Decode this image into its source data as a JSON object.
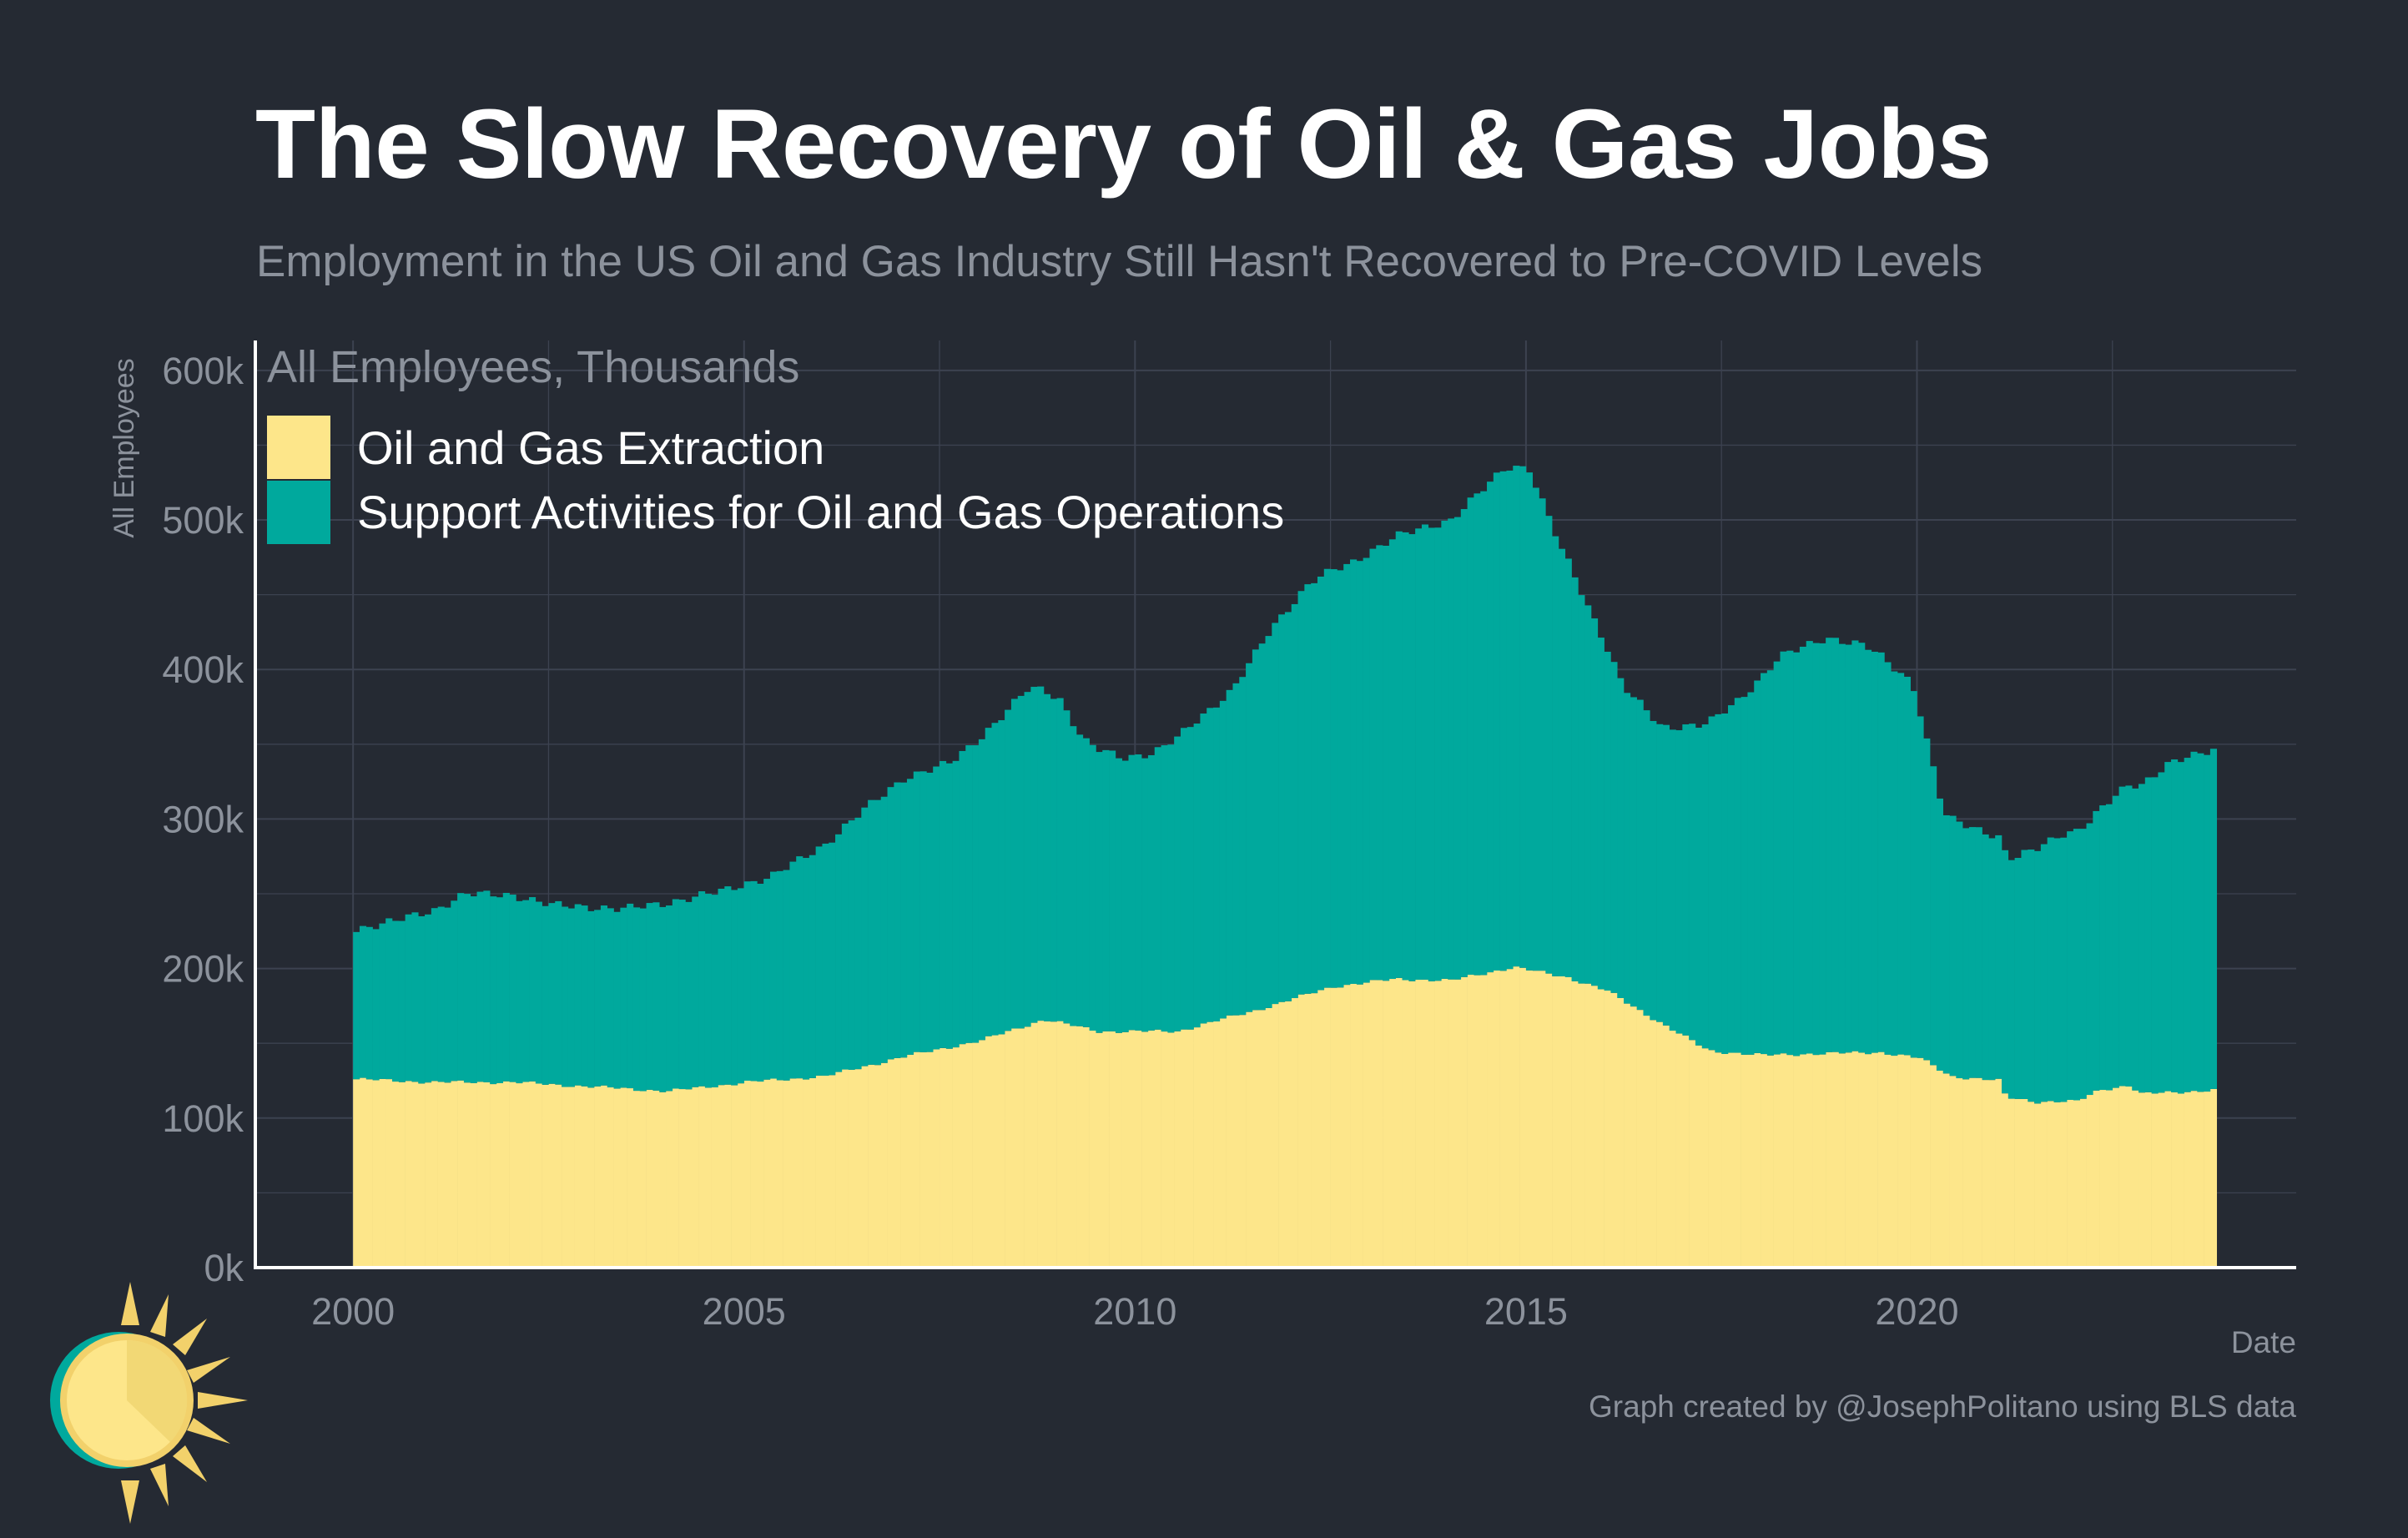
{
  "header": {
    "title": "The Slow Recovery of Oil & Gas Jobs",
    "subtitle": "Employment in the US Oil and Gas Industry Still Hasn't Recovered to Pre-COVID Levels"
  },
  "caption": "Graph created by @JosephPolitano using BLS data",
  "chart_data": {
    "type": "bar",
    "stacked": true,
    "legend_title": "All Employees, Thousands",
    "ylabel": "All Employees",
    "xlabel": "Date",
    "ylim": [
      0,
      620
    ],
    "yticks": [
      0,
      100,
      200,
      300,
      400,
      500,
      600
    ],
    "ytick_labels": [
      "0k",
      "100k",
      "200k",
      "300k",
      "400k",
      "500k",
      "600k"
    ],
    "xlim": [
      1998.75,
      2024.85
    ],
    "xticks": [
      2000,
      2005,
      2010,
      2015,
      2020
    ],
    "xtick_labels": [
      "2000",
      "2005",
      "2010",
      "2015",
      "2020"
    ],
    "grid": true,
    "legend_position": "top-left",
    "colors": {
      "extraction": "#fde68a",
      "support": "#00a99d",
      "background": "#252a33",
      "grid": "#3c4250",
      "axis": "#ffffff",
      "muted_text": "#8c929c"
    },
    "series": [
      {
        "name": "Oil and Gas Extraction",
        "key": "extraction",
        "anchors": [
          [
            2000.0,
            126
          ],
          [
            2001.0,
            124
          ],
          [
            2002.0,
            124
          ],
          [
            2003.0,
            121
          ],
          [
            2004.0,
            118
          ],
          [
            2005.0,
            124
          ],
          [
            2006.0,
            128
          ],
          [
            2007.0,
            141
          ],
          [
            2008.0,
            152
          ],
          [
            2008.8,
            166
          ],
          [
            2009.5,
            158
          ],
          [
            2010.5,
            158
          ],
          [
            2011.5,
            172
          ],
          [
            2012.5,
            188
          ],
          [
            2013.3,
            193
          ],
          [
            2014.0,
            192
          ],
          [
            2014.8,
            201
          ],
          [
            2015.5,
            194
          ],
          [
            2016.0,
            185
          ],
          [
            2016.8,
            160
          ],
          [
            2017.3,
            145
          ],
          [
            2018.0,
            142
          ],
          [
            2018.6,
            143
          ],
          [
            2019.5,
            144
          ],
          [
            2020.0,
            140
          ],
          [
            2020.4,
            128
          ],
          [
            2021.0,
            125
          ],
          [
            2021.1,
            114
          ],
          [
            2021.5,
            111
          ],
          [
            2022.0,
            111
          ],
          [
            2022.3,
            119
          ],
          [
            2022.7,
            122
          ],
          [
            2022.8,
            116
          ],
          [
            2023.5,
            118
          ],
          [
            2023.8,
            119
          ]
        ]
      },
      {
        "name": "Support Activities for Oil and Gas Operations",
        "key": "support",
        "anchors": [
          [
            2000.0,
            100
          ],
          [
            2000.5,
            107
          ],
          [
            2001.0,
            115
          ],
          [
            2001.4,
            126
          ],
          [
            2002.0,
            125
          ],
          [
            2002.5,
            120
          ],
          [
            2003.0,
            120
          ],
          [
            2003.4,
            120
          ],
          [
            2004.0,
            126
          ],
          [
            2004.7,
            130
          ],
          [
            2005.3,
            136
          ],
          [
            2006.0,
            155
          ],
          [
            2006.5,
            172
          ],
          [
            2007.0,
            186
          ],
          [
            2007.6,
            190
          ],
          [
            2008.2,
            210
          ],
          [
            2008.6,
            225
          ],
          [
            2009.0,
            216
          ],
          [
            2009.3,
            192
          ],
          [
            2009.8,
            183
          ],
          [
            2010.2,
            186
          ],
          [
            2010.7,
            203
          ],
          [
            2011.2,
            218
          ],
          [
            2011.7,
            252
          ],
          [
            2012.2,
            275
          ],
          [
            2012.7,
            281
          ],
          [
            2013.3,
            296
          ],
          [
            2014.0,
            308
          ],
          [
            2014.7,
            335
          ],
          [
            2015.0,
            335
          ],
          [
            2015.4,
            287
          ],
          [
            2015.8,
            248
          ],
          [
            2016.2,
            210
          ],
          [
            2016.7,
            198
          ],
          [
            2017.2,
            215
          ],
          [
            2017.7,
            237
          ],
          [
            2018.2,
            266
          ],
          [
            2018.8,
            278
          ],
          [
            2019.3,
            272
          ],
          [
            2019.9,
            250
          ],
          [
            2020.3,
            173
          ],
          [
            2020.8,
            166
          ],
          [
            2021.2,
            160
          ],
          [
            2021.8,
            179
          ],
          [
            2022.2,
            183
          ],
          [
            2022.6,
            199
          ],
          [
            2023.2,
            220
          ],
          [
            2023.8,
            229
          ]
        ]
      }
    ]
  }
}
